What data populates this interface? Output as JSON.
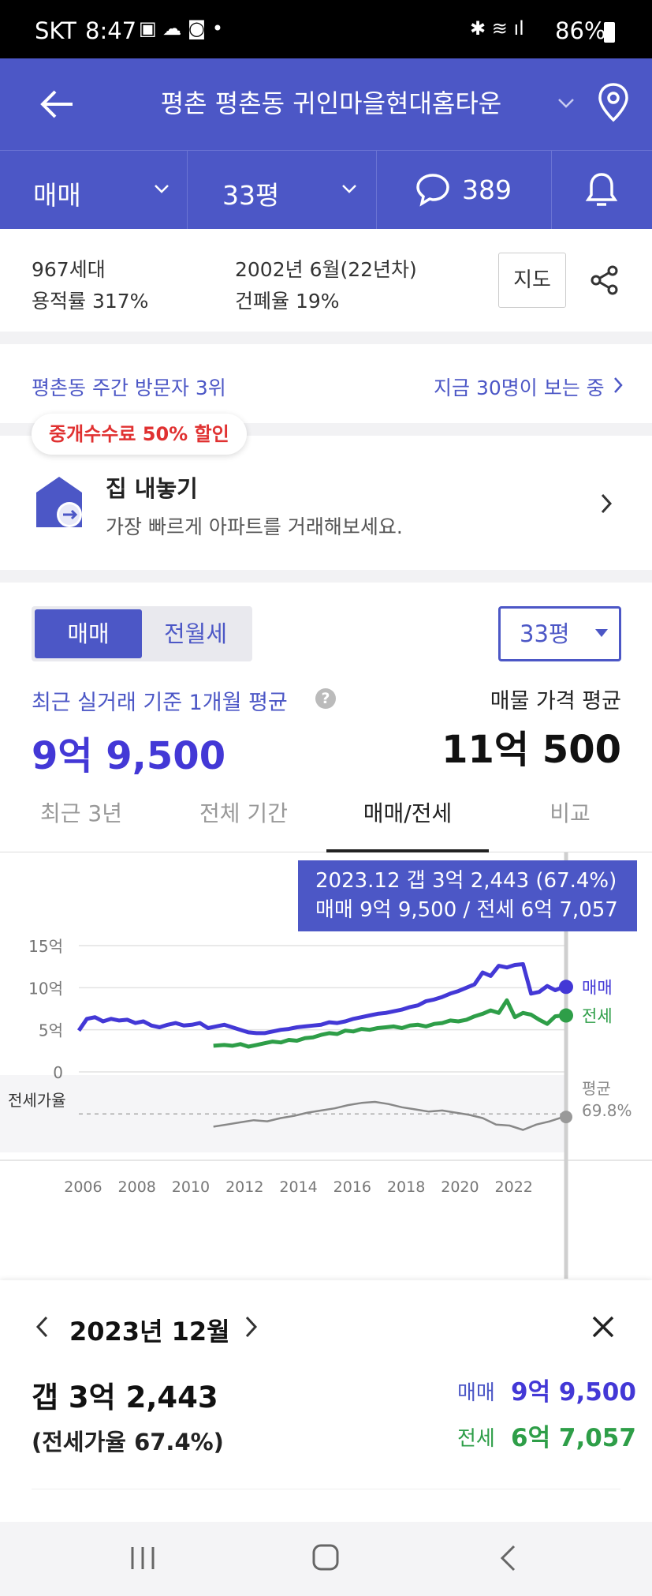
{
  "status_bar": {
    "carrier": "SKT",
    "time": "8:47",
    "battery": "86%"
  },
  "header": {
    "title": "평촌 평촌동 귀인마을현대홈타운"
  },
  "filters": {
    "trade_type": "매매",
    "size": "33평",
    "comment_count": "389"
  },
  "info": {
    "households": "967세대",
    "floor_area_ratio": "용적률 317%",
    "built": "2002년 6월(22년차)",
    "coverage_ratio": "건폐율 19%",
    "map_button": "지도"
  },
  "visitor": {
    "rank": "평촌동 주간 방문자 3위",
    "viewing_now": "지금 30명이 보는 중"
  },
  "listing": {
    "promo_badge": "중개수수료 50% 할인",
    "title": "집 내놓기",
    "subtitle": "가장 빠르게 아파트를 거래해보세요."
  },
  "price": {
    "seg_on": "매매",
    "seg_off": "전월세",
    "size_select": "33평",
    "recent_label": "최근 실거래 기준 1개월 평균",
    "recent_value": "9억 9,500",
    "ask_label": "매물 가격 평균",
    "ask_value": "11억 500"
  },
  "tabs": [
    "최근 3년",
    "전체 기간",
    "매매/전세",
    "비교"
  ],
  "tooltip": {
    "line1": "2023.12  갭 3억 2,443 (67.4%)",
    "line2": "매매 9억 9,500 / 전세 6억 7,057"
  },
  "colors": {
    "sale": "#4338d6",
    "jeonse": "#2e9e48",
    "ratio": "#888888",
    "accent": "#4c57c6"
  },
  "chart_data": {
    "type": "line",
    "y_ticks": [
      "15억",
      "10억",
      "5억",
      "0"
    ],
    "x_ticks": [
      "2006",
      "2008",
      "2010",
      "2012",
      "2014",
      "2016",
      "2018",
      "2020",
      "2022"
    ],
    "ratio_label": "전세가율",
    "ylim": [
      0,
      15
    ],
    "xlim": [
      2005.9,
      2024.0
    ],
    "series": [
      {
        "name": "매매",
        "x": [
          2005.9,
          2006.2,
          2006.5,
          2006.8,
          2007.1,
          2007.4,
          2007.7,
          2008.0,
          2008.3,
          2008.6,
          2008.9,
          2009.2,
          2009.5,
          2009.8,
          2010.1,
          2010.4,
          2010.7,
          2011.0,
          2011.3,
          2011.6,
          2011.9,
          2012.2,
          2012.5,
          2012.8,
          2013.1,
          2013.4,
          2013.7,
          2014.0,
          2014.3,
          2014.6,
          2014.9,
          2015.2,
          2015.5,
          2015.8,
          2016.1,
          2016.4,
          2016.7,
          2017.0,
          2017.3,
          2017.6,
          2017.9,
          2018.2,
          2018.5,
          2018.8,
          2019.1,
          2019.4,
          2019.7,
          2020.0,
          2020.3,
          2020.6,
          2020.9,
          2021.2,
          2021.5,
          2021.8,
          2022.1,
          2022.4,
          2022.7,
          2023.0,
          2023.3,
          2023.6,
          2023.9
        ],
        "values": [
          4.9,
          6.3,
          6.5,
          6.0,
          6.3,
          6.1,
          6.2,
          5.8,
          6.0,
          5.5,
          5.3,
          5.6,
          5.8,
          5.5,
          5.6,
          5.8,
          5.2,
          5.4,
          5.6,
          5.3,
          5.0,
          4.7,
          4.6,
          4.6,
          4.8,
          5.0,
          5.1,
          5.3,
          5.4,
          5.5,
          5.6,
          5.9,
          5.8,
          6.0,
          6.3,
          6.5,
          6.7,
          6.9,
          7.0,
          7.2,
          7.4,
          7.7,
          7.9,
          8.4,
          8.6,
          8.9,
          9.3,
          9.6,
          10.0,
          10.4,
          11.8,
          11.4,
          12.6,
          12.4,
          12.7,
          12.8,
          9.3,
          9.5,
          10.2,
          9.7,
          10.1
        ]
      },
      {
        "name": "전세",
        "x": [
          2010.9,
          2011.3,
          2011.6,
          2011.9,
          2012.2,
          2012.5,
          2012.8,
          2013.1,
          2013.4,
          2013.7,
          2014.0,
          2014.3,
          2014.6,
          2014.9,
          2015.2,
          2015.5,
          2015.8,
          2016.1,
          2016.4,
          2016.7,
          2017.0,
          2017.3,
          2017.6,
          2017.9,
          2018.2,
          2018.5,
          2018.8,
          2019.1,
          2019.4,
          2019.7,
          2020.0,
          2020.3,
          2020.6,
          2020.9,
          2021.2,
          2021.5,
          2021.8,
          2022.1,
          2022.4,
          2022.7,
          2023.0,
          2023.3,
          2023.6,
          2023.9
        ],
        "values": [
          3.1,
          3.2,
          3.1,
          3.3,
          3.0,
          3.2,
          3.4,
          3.6,
          3.5,
          3.8,
          3.7,
          4.0,
          4.1,
          4.4,
          4.6,
          4.5,
          4.9,
          4.8,
          5.1,
          5.0,
          5.2,
          5.3,
          5.4,
          5.2,
          5.5,
          5.6,
          5.4,
          5.7,
          5.8,
          6.1,
          6.0,
          6.2,
          6.6,
          6.9,
          7.3,
          7.0,
          8.5,
          6.5,
          7.0,
          6.8,
          6.2,
          5.7,
          6.6,
          6.7
        ]
      },
      {
        "name": "전세가율",
        "x": [
          2010.9,
          2011.4,
          2011.9,
          2012.4,
          2012.9,
          2013.4,
          2013.9,
          2014.4,
          2014.9,
          2015.4,
          2015.9,
          2016.4,
          2016.9,
          2017.4,
          2017.9,
          2018.4,
          2018.9,
          2019.4,
          2019.9,
          2020.4,
          2020.9,
          2021.4,
          2021.9,
          2022.4,
          2022.9,
          2023.4,
          2023.9
        ],
        "values": [
          58,
          60,
          62,
          64,
          63,
          66,
          68,
          71,
          73,
          75,
          78,
          80,
          81,
          79,
          76,
          74,
          72,
          73,
          71,
          69,
          66,
          60,
          59,
          55,
          60,
          63,
          67
        ]
      }
    ],
    "ratio_average": "평균",
    "ratio_average_value": "69.8%"
  },
  "detail": {
    "month": "2023년 12월",
    "gap": "갭 3억 2,443",
    "ratio": "(전세가율 67.4%)",
    "sale_label": "매매",
    "sale_value": "9억 9,500",
    "jeonse_label": "전세",
    "jeonse_value": "6억 7,057"
  }
}
